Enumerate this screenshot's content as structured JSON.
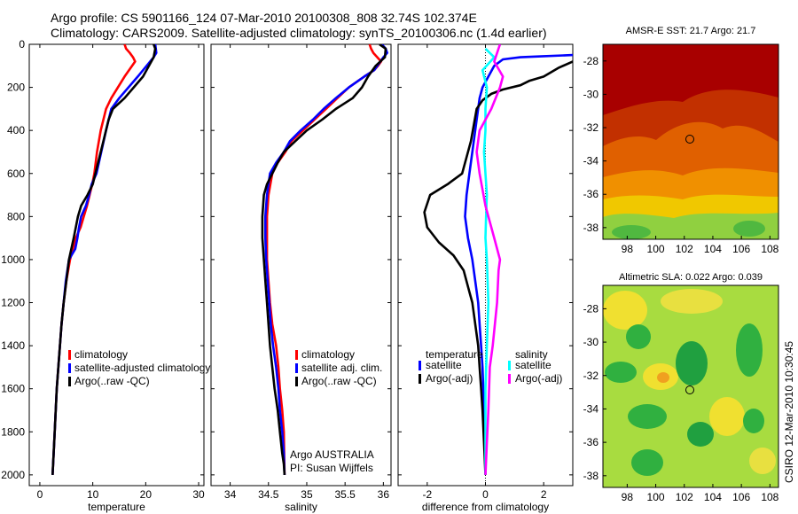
{
  "title": {
    "line1": "Argo profile: CS 5901166_124 07-Mar-2010 20100308_808 32.74S 102.374E",
    "line2": "Climatology: CARS2009. Satellite-adjusted climatology: synTS_20100306.nc (1.4d earlier)"
  },
  "side_label": "CSIRO 12-Mar-2010 10:30:45",
  "colors": {
    "red": "#ff0000",
    "blue": "#0000ff",
    "black": "#000000",
    "cyan": "#00ffff",
    "magenta": "#ff00ff"
  },
  "chart_data": [
    {
      "type": "line",
      "xlabel": "temperature",
      "xlim": [
        -2,
        31
      ],
      "ylim": [
        0,
        2050
      ],
      "y_reversed": true,
      "xticks": [
        0,
        10,
        20,
        30
      ],
      "yticks": [
        0,
        200,
        400,
        600,
        800,
        1000,
        1200,
        1400,
        1600,
        1800,
        2000
      ],
      "legend": [
        "climatology",
        "satellite-adjusted climatology",
        "Argo(..raw -QC)"
      ],
      "series": [
        {
          "name": "climatology",
          "color": "red",
          "x": [
            16.0,
            16.3,
            17.0,
            17.6,
            18.0,
            16.0,
            13.5,
            12.5,
            11.5,
            10.8,
            10.3,
            9.9,
            9.4,
            8.9,
            8.3,
            7.7,
            6.8,
            5.7,
            5.0,
            4.5,
            4.1,
            3.8,
            3.5,
            3.2,
            2.8,
            2.4
          ],
          "y": [
            0,
            20,
            40,
            60,
            80,
            150,
            250,
            300,
            400,
            500,
            600,
            650,
            700,
            750,
            800,
            850,
            900,
            1000,
            1100,
            1200,
            1300,
            1400,
            1500,
            1600,
            1800,
            2000
          ]
        },
        {
          "name": "satellite-adjusted climatology",
          "color": "blue",
          "x": [
            21.8,
            21.9,
            22.0,
            21.5,
            18.5,
            15.0,
            13.5,
            12.5,
            11.6,
            10.7,
            9.8,
            9.3,
            8.7,
            7.8,
            7.4,
            7.1,
            6.7,
            5.5,
            4.9,
            4.5,
            4.1,
            3.8,
            3.5,
            3.2,
            2.8,
            2.4
          ],
          "y": [
            0,
            20,
            40,
            60,
            150,
            250,
            300,
            400,
            500,
            600,
            650,
            700,
            750,
            800,
            850,
            900,
            950,
            1000,
            1100,
            1200,
            1300,
            1400,
            1500,
            1600,
            1800,
            2000
          ]
        },
        {
          "name": "Argo(..raw -QC)",
          "color": "black",
          "x": [
            21.5,
            21.8,
            21.5,
            19.5,
            16.0,
            13.8,
            13.0,
            12.0,
            11.0,
            10.0,
            9.0,
            7.8,
            7.2,
            6.8,
            6.4,
            5.5,
            5.0,
            4.5,
            4.1,
            3.8,
            3.5,
            3.2,
            2.8,
            2.4
          ],
          "y": [
            0,
            20,
            60,
            150,
            250,
            300,
            350,
            450,
            550,
            650,
            700,
            750,
            800,
            850,
            900,
            1000,
            1100,
            1200,
            1300,
            1400,
            1500,
            1600,
            1800,
            2000
          ]
        }
      ]
    },
    {
      "type": "line",
      "xlabel": "salinity",
      "xlim": [
        33.75,
        36.1
      ],
      "ylim": [
        0,
        2050
      ],
      "y_reversed": true,
      "xticks": [
        34,
        34.5,
        35,
        35.5,
        36
      ],
      "legend": [
        "climatology",
        "satellite adj. clim.",
        "Argo(..raw -QC)"
      ],
      "annotation": [
        "Argo AUSTRALIA",
        "PI: Susan Wijffels"
      ],
      "series": [
        {
          "name": "climatology",
          "color": "red",
          "x": [
            35.82,
            35.84,
            35.87,
            35.92,
            35.97,
            35.93,
            35.88,
            35.75,
            35.55,
            35.4,
            35.25,
            35.1,
            34.95,
            34.8,
            34.72,
            34.62,
            34.55,
            34.5,
            34.48,
            34.48,
            34.48,
            34.5,
            34.52,
            34.55,
            34.6,
            34.63,
            34.65,
            34.68,
            34.7,
            34.71
          ],
          "y": [
            0,
            20,
            40,
            60,
            80,
            100,
            120,
            150,
            200,
            250,
            300,
            350,
            400,
            450,
            500,
            550,
            600,
            700,
            800,
            900,
            1000,
            1100,
            1200,
            1300,
            1400,
            1500,
            1600,
            1700,
            1800,
            2000
          ]
        },
        {
          "name": "satellite adj. clim.",
          "color": "blue",
          "x": [
            35.98,
            36.03,
            36.05,
            36.0,
            35.92,
            35.88,
            35.75,
            35.55,
            35.38,
            35.22,
            35.08,
            34.92,
            34.78,
            34.7,
            34.6,
            34.52,
            34.48,
            34.46,
            34.46,
            34.47,
            34.49,
            34.51,
            34.53,
            34.56,
            34.6,
            34.63,
            34.65,
            34.68,
            34.7,
            34.71
          ],
          "y": [
            0,
            20,
            40,
            60,
            100,
            120,
            150,
            200,
            250,
            300,
            350,
            400,
            450,
            500,
            550,
            600,
            700,
            800,
            900,
            1000,
            1100,
            1200,
            1300,
            1400,
            1500,
            1600,
            1700,
            1800,
            1900,
            2000
          ]
        },
        {
          "name": "Argo(..raw -QC)",
          "color": "black",
          "x": [
            35.95,
            36.03,
            36.02,
            35.9,
            35.8,
            35.72,
            35.6,
            35.38,
            35.2,
            35.0,
            34.85,
            34.7,
            34.62,
            34.55,
            34.48,
            34.44,
            34.42,
            34.42,
            34.44,
            34.46,
            34.48,
            34.5,
            34.52,
            34.55,
            34.58,
            34.62,
            34.65,
            34.68,
            34.7,
            34.71
          ],
          "y": [
            0,
            20,
            60,
            100,
            150,
            200,
            250,
            300,
            350,
            400,
            450,
            500,
            550,
            600,
            650,
            700,
            800,
            900,
            1000,
            1100,
            1200,
            1300,
            1400,
            1500,
            1600,
            1700,
            1800,
            1900,
            1950,
            2000
          ]
        }
      ]
    },
    {
      "type": "line",
      "xlabel": "difference from climatology",
      "xlim": [
        -3,
        3
      ],
      "ylim": [
        0,
        2050
      ],
      "y_reversed": true,
      "xticks": [
        -2,
        0,
        2
      ],
      "reference_line_x": 0,
      "legend_groups": [
        {
          "title": "temperature",
          "items": [
            "satellite",
            "Argo(-adj)"
          ]
        },
        {
          "title": "salinity",
          "items": [
            "satellite",
            "Argo(-adj)"
          ]
        }
      ],
      "series": [
        {
          "name": "temperature satellite",
          "color": "blue",
          "x": [
            3.0,
            2.0,
            1.2,
            0.6,
            0.3,
            0.1,
            -0.1,
            -0.2,
            -0.3,
            -0.45,
            -0.55,
            -0.65,
            -0.7,
            -0.6,
            -0.45,
            -0.35,
            -0.25,
            -0.2,
            -0.15,
            -0.1,
            -0.05,
            -0.02,
            0.0
          ],
          "y": [
            50,
            55,
            60,
            70,
            100,
            150,
            200,
            250,
            350,
            500,
            600,
            700,
            800,
            900,
            1000,
            1100,
            1200,
            1300,
            1400,
            1500,
            1700,
            1850,
            2000
          ]
        },
        {
          "name": "temperature Argo(-adj)",
          "color": "black",
          "x": [
            3.0,
            2.5,
            2.0,
            1.5,
            1.2,
            0.6,
            0.2,
            -0.1,
            -0.3,
            -0.5,
            -0.8,
            -1.3,
            -1.9,
            -2.1,
            -2.0,
            -1.6,
            -1.1,
            -0.75,
            -0.55,
            -0.45,
            -0.35,
            -0.25,
            -0.2,
            -0.15,
            -0.1,
            -0.05,
            0.0
          ],
          "y": [
            80,
            110,
            150,
            170,
            190,
            210,
            230,
            260,
            300,
            450,
            600,
            650,
            700,
            780,
            850,
            920,
            980,
            1050,
            1150,
            1200,
            1300,
            1400,
            1500,
            1600,
            1700,
            1850,
            2000
          ]
        },
        {
          "name": "salinity satellite",
          "color": "cyan",
          "x": [
            0.0,
            0.3,
            -0.1,
            0.05,
            0.0,
            0.0,
            -0.05,
            0.0,
            0.05,
            0.02,
            0.0,
            0.05,
            0.1,
            0.05,
            0.0,
            0.0
          ],
          "y": [
            20,
            60,
            120,
            200,
            300,
            400,
            500,
            600,
            700,
            800,
            900,
            1000,
            1200,
            1400,
            1600,
            2000
          ]
        },
        {
          "name": "salinity Argo(-adj)",
          "color": "magenta",
          "x": [
            0.5,
            0.3,
            0.6,
            0.5,
            0.2,
            -0.2,
            -0.3,
            -0.2,
            0.0,
            0.3,
            0.5,
            0.45,
            0.4,
            0.25,
            0.15,
            0.1,
            0.05,
            0.0
          ],
          "y": [
            0,
            80,
            150,
            200,
            300,
            400,
            500,
            600,
            750,
            900,
            1000,
            1050,
            1200,
            1400,
            1500,
            1700,
            1850,
            2000
          ]
        }
      ]
    },
    {
      "type": "heatmap",
      "title": "AMSR-E SST: 21.7  Argo: 21.7",
      "xticks": [
        98,
        100,
        102,
        104,
        106,
        108
      ],
      "yticks": [
        -28,
        -30,
        -32,
        -34,
        -36,
        -38
      ],
      "xlim": [
        96.3,
        108.6
      ],
      "ylim": [
        -38.7,
        -27
      ],
      "marker": {
        "lon": 102.374,
        "lat": -32.74
      }
    },
    {
      "type": "heatmap",
      "title": "Altimetric SLA: 0.022  Argo: 0.039",
      "xticks": [
        98,
        100,
        102,
        104,
        106,
        108
      ],
      "yticks": [
        -28,
        -30,
        -32,
        -34,
        -36,
        -38
      ],
      "xlim": [
        96.3,
        108.6
      ],
      "ylim": [
        -38.7,
        -26.6
      ],
      "marker": {
        "lon": 102.374,
        "lat": -32.74
      }
    }
  ]
}
